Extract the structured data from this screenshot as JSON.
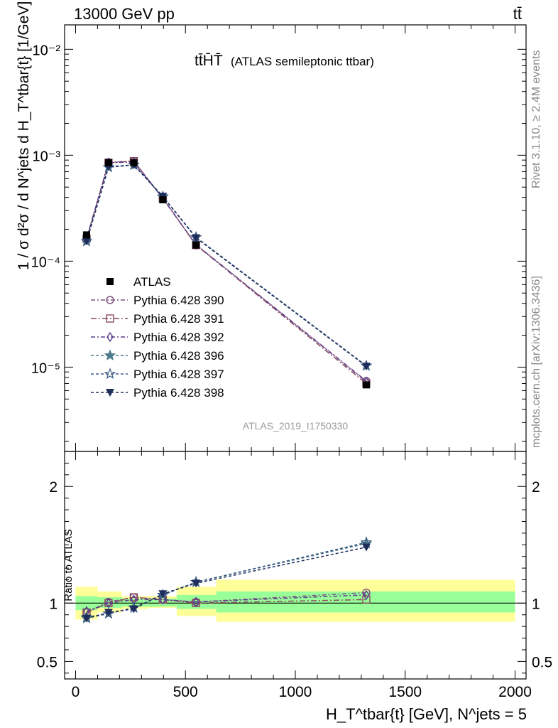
{
  "header": {
    "left": "13000 GeV pp",
    "right": "tt̄"
  },
  "side_text": {
    "rivet": "Rivet 3.1.10, ≥ 2.4M events",
    "mcplots": "mcplots.cern.ch [arXiv:1306.3436]"
  },
  "chart_data": [
    {
      "type": "line",
      "title": "tt̄HT̄T (ATLAS semileptonic ttbar)",
      "title_main": "tt̄H̄T̄",
      "title_sub": "(ATLAS semileptonic ttbar)",
      "ylabel": "1 / σ d²σ / d N^jets d H_T^tbar{t} [1/GeV]",
      "yscale": "log",
      "ylim": [
        1.6e-06,
        0.017
      ],
      "xlim": [
        -50,
        2050
      ],
      "yticks": [
        "10⁻⁵",
        "10⁻⁴",
        "10⁻³",
        "10⁻²"
      ],
      "watermark": "ATLAS_2019_I1750330",
      "legend_placement": "center-left",
      "data": {
        "name": "ATLAS",
        "x": [
          50,
          150,
          265,
          397,
          548,
          1323
        ],
        "y": [
          0.000177,
          0.00085,
          0.00085,
          0.00038,
          0.000142,
          6.8e-06
        ]
      },
      "series": [
        {
          "name": "Pythia 6.428 390",
          "color": "#7d4f7d",
          "marker": "circle-open",
          "dash": "6,3,2,3",
          "x": [
            50,
            150,
            265,
            397,
            548,
            1323
          ],
          "y": [
            0.000163,
            0.00086,
            0.00088,
            0.000393,
            0.000143,
            7.4e-06
          ]
        },
        {
          "name": "Pythia 6.428 391",
          "color": "#8a4a5c",
          "marker": "square-open",
          "dash": "8,3,2,3",
          "x": [
            50,
            150,
            265,
            397,
            548,
            1323
          ],
          "y": [
            0.000163,
            0.00085,
            0.00088,
            0.000391,
            0.000142,
            7e-06
          ]
        },
        {
          "name": "Pythia 6.428 392",
          "color": "#5b3f8f",
          "marker": "diamond-open",
          "dash": "6,3,2,3",
          "x": [
            50,
            150,
            265,
            397,
            548,
            1323
          ],
          "y": [
            0.000164,
            0.00085,
            0.00086,
            0.000392,
            0.000143,
            7.3e-06
          ]
        },
        {
          "name": "Pythia 6.428 396",
          "color": "#4d7a8a",
          "marker": "star",
          "dash": "4,3",
          "x": [
            50,
            150,
            265,
            397,
            548,
            1323
          ],
          "y": [
            0.000155,
            0.00077,
            0.00081,
            0.000405,
            0.000168,
            1.03e-05
          ]
        },
        {
          "name": "Pythia 6.428 397",
          "color": "#3a5a80",
          "marker": "star-open",
          "dash": "4,3",
          "x": [
            50,
            150,
            265,
            397,
            548,
            1323
          ],
          "y": [
            0.000154,
            0.00077,
            0.00081,
            0.000408,
            0.000168,
            1.03e-05
          ]
        },
        {
          "name": "Pythia 6.428 398",
          "color": "#1f2d5c",
          "marker": "triangle-down",
          "dash": "4,3",
          "x": [
            50,
            150,
            265,
            397,
            548,
            1323
          ],
          "y": [
            0.000155,
            0.00078,
            0.00081,
            0.00041,
            0.000166,
            1.02e-05
          ]
        }
      ]
    },
    {
      "type": "line",
      "ylabel": "Ratio to ATLAS",
      "xlabel": "H_T^tbar{t} [GeV], N^jets = 5",
      "ylim": [
        0.35,
        2.3
      ],
      "xlim": [
        -50,
        2050
      ],
      "xticks": [
        0,
        500,
        1000,
        1500,
        2000
      ],
      "yticks": [
        0.5,
        1,
        2
      ],
      "bands": [
        {
          "x0": 0,
          "x1": 100,
          "inner": [
            0.94,
            1.06
          ],
          "outer": [
            0.86,
            1.14
          ]
        },
        {
          "x0": 100,
          "x1": 210,
          "inner": [
            0.96,
            1.05
          ],
          "outer": [
            0.92,
            1.1
          ]
        },
        {
          "x0": 210,
          "x1": 330,
          "inner": [
            0.97,
            1.04
          ],
          "outer": [
            0.95,
            1.06
          ]
        },
        {
          "x0": 330,
          "x1": 460,
          "inner": [
            0.97,
            1.04
          ],
          "outer": [
            0.96,
            1.06
          ]
        },
        {
          "x0": 460,
          "x1": 640,
          "inner": [
            0.95,
            1.07
          ],
          "outer": [
            0.89,
            1.14
          ]
        },
        {
          "x0": 640,
          "x1": 2000,
          "inner": [
            0.92,
            1.1
          ],
          "outer": [
            0.84,
            1.2
          ]
        }
      ],
      "series": [
        {
          "name": "Pythia 6.428 390",
          "x": [
            50,
            150,
            265,
            397,
            548,
            1323
          ],
          "y": [
            0.92,
            1.01,
            1.05,
            1.03,
            1.01,
            1.09
          ]
        },
        {
          "name": "Pythia 6.428 391",
          "x": [
            50,
            150,
            265,
            397,
            548,
            1323
          ],
          "y": [
            0.92,
            1.0,
            1.05,
            1.03,
            1.0,
            1.03
          ]
        },
        {
          "name": "Pythia 6.428 392",
          "x": [
            50,
            150,
            265,
            397,
            548,
            1323
          ],
          "y": [
            0.93,
            1.0,
            1.03,
            1.03,
            1.01,
            1.07
          ]
        },
        {
          "name": "Pythia 6.428 396",
          "x": [
            50,
            150,
            265,
            397,
            548,
            1323
          ],
          "y": [
            0.88,
            0.91,
            0.96,
            1.07,
            1.18,
            1.51
          ]
        },
        {
          "name": "Pythia 6.428 397",
          "x": [
            50,
            150,
            265,
            397,
            548,
            1323
          ],
          "y": [
            0.87,
            0.91,
            0.96,
            1.07,
            1.18,
            1.52
          ]
        },
        {
          "name": "Pythia 6.428 398",
          "x": [
            50,
            150,
            265,
            397,
            548,
            1323
          ],
          "y": [
            0.87,
            0.92,
            0.95,
            1.08,
            1.17,
            1.48
          ]
        }
      ]
    }
  ]
}
